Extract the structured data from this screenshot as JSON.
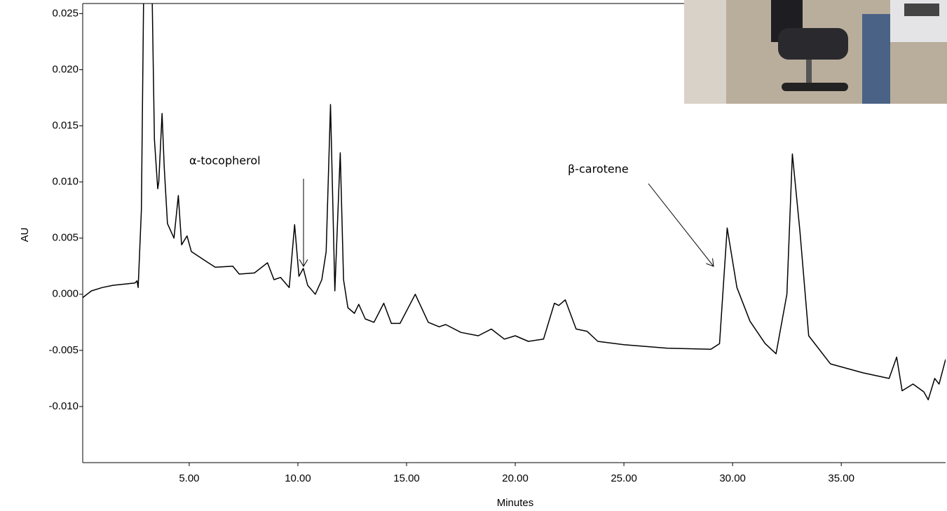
{
  "chart_data": {
    "type": "line",
    "x_label": "Minutes",
    "y_label": "AU",
    "annotations": [
      "α-tocopherol",
      "β-carotene"
    ],
    "color": "#000000",
    "xlim": [
      0.1,
      39.8
    ],
    "ylim": [
      -0.015,
      0.0259
    ],
    "xticks": [
      {
        "value": 5,
        "label": "5.00"
      },
      {
        "value": 10,
        "label": "10.00"
      },
      {
        "value": 15,
        "label": "15.00"
      },
      {
        "value": 20,
        "label": "20.00"
      },
      {
        "value": 25,
        "label": "25.00"
      },
      {
        "value": 30,
        "label": "30.00"
      },
      {
        "value": 35,
        "label": "35.00"
      }
    ],
    "yticks": [
      {
        "value": -0.01,
        "label": "-0.010"
      },
      {
        "value": -0.005,
        "label": "-0.005"
      },
      {
        "value": 0,
        "label": "0.000"
      },
      {
        "value": 0.005,
        "label": "0.005"
      },
      {
        "value": 0.01,
        "label": "0.010"
      },
      {
        "value": 0.015,
        "label": "0.015"
      },
      {
        "value": 0.02,
        "label": "0.020"
      },
      {
        "value": 0.025,
        "label": "0.025"
      }
    ],
    "x": [
      0.1,
      0.5,
      1.0,
      1.5,
      2.0,
      2.5,
      2.6,
      2.65,
      2.8,
      2.9,
      3.3,
      3.4,
      3.55,
      3.6,
      3.75,
      3.85,
      4.0,
      4.3,
      4.5,
      4.65,
      4.9,
      5.1,
      5.8,
      6.2,
      7.0,
      7.3,
      8.0,
      8.6,
      8.9,
      9.2,
      9.6,
      9.85,
      10.05,
      10.25,
      10.45,
      10.8,
      11.1,
      11.3,
      11.5,
      11.7,
      11.95,
      12.1,
      12.3,
      12.6,
      12.8,
      13.1,
      13.5,
      13.95,
      14.3,
      14.7,
      15.4,
      16.0,
      16.5,
      16.8,
      17.5,
      18.3,
      18.9,
      19.5,
      20.0,
      20.6,
      21.3,
      21.8,
      22.0,
      22.3,
      22.8,
      23.3,
      23.8,
      25.0,
      27.0,
      29.0,
      29.4,
      29.75,
      30.2,
      30.8,
      31.5,
      32.0,
      32.5,
      32.75,
      33.1,
      33.5,
      34.5,
      36.0,
      37.2,
      37.55,
      37.8,
      38.3,
      38.8,
      39.0,
      39.3,
      39.5,
      39.8
    ],
    "values": [
      -0.0003,
      0.0003,
      0.0006,
      0.0008,
      0.0009,
      0.001,
      0.0012,
      0.0006,
      0.0075,
      0.026,
      0.026,
      0.0138,
      0.0094,
      0.01,
      0.0161,
      0.0113,
      0.0063,
      0.005,
      0.0088,
      0.0044,
      0.0052,
      0.0038,
      0.0029,
      0.0024,
      0.0025,
      0.0018,
      0.0019,
      0.0028,
      0.0013,
      0.0015,
      0.0006,
      0.0062,
      0.0016,
      0.0023,
      0.0008,
      0.0,
      0.0013,
      0.0038,
      0.0169,
      0.0003,
      0.0126,
      0.0013,
      -0.0012,
      -0.0017,
      -0.0009,
      -0.0022,
      -0.0025,
      -0.0008,
      -0.0026,
      -0.0026,
      0.0,
      -0.0025,
      -0.0029,
      -0.0027,
      -0.0034,
      -0.0037,
      -0.0031,
      -0.004,
      -0.0037,
      -0.0042,
      -0.004,
      -0.0008,
      -0.001,
      -0.0005,
      -0.0031,
      -0.0033,
      -0.0042,
      -0.0045,
      -0.0048,
      -0.0049,
      -0.0044,
      0.0059,
      0.0006,
      -0.0024,
      -0.0044,
      -0.0053,
      0.0,
      0.0125,
      0.0056,
      -0.0037,
      -0.0062,
      -0.007,
      -0.0075,
      -0.0056,
      -0.0086,
      -0.008,
      -0.0087,
      -0.0094,
      -0.0075,
      -0.008,
      -0.0058
    ]
  }
}
